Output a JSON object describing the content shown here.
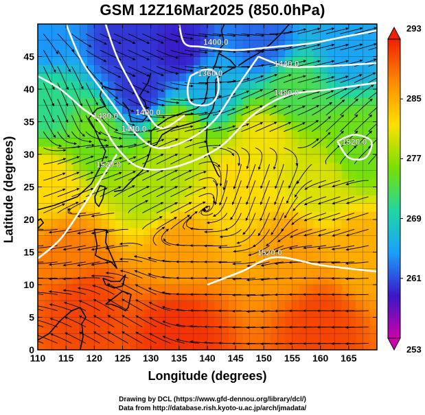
{
  "title": "GSM 12Z16Mar2025 (850.0hPa)",
  "xlabel": "Longitude (degrees)",
  "ylabel": "Latitude  (degrees)",
  "credits": {
    "line1": "Drawing by DCL (https://www.gfd-dennou.org/library/dcl/)",
    "line2": "Data from http://database.rish.kyoto-u.ac.jp/arch/jmadata/"
  },
  "map": {
    "lon_range": [
      110,
      170
    ],
    "lat_range": [
      0,
      50
    ],
    "x_ticks": [
      "110",
      "115",
      "120",
      "125",
      "130",
      "135",
      "140",
      "145",
      "150",
      "155",
      "160",
      "165"
    ],
    "y_ticks": [
      "0",
      "5",
      "10",
      "15",
      "20",
      "25",
      "30",
      "35",
      "40",
      "45"
    ],
    "colorbar": {
      "min": 253,
      "max": 293,
      "labels": [
        "293",
        "285",
        "277",
        "269",
        "261",
        "253"
      ],
      "colors": [
        "#cc00aa",
        "#3a17c8",
        "#1aa0ff",
        "#20d8a0",
        "#7ae000",
        "#ffe000",
        "#ff8a00",
        "#f02000"
      ]
    },
    "contour_labels": [
      {
        "text": "1400.0",
        "lon": 141.5,
        "lat": 46.8
      },
      {
        "text": "1440.0",
        "lon": 154.0,
        "lat": 43.5
      },
      {
        "text": "1360.0",
        "lon": 140.5,
        "lat": 42.0
      },
      {
        "text": "1400.0",
        "lon": 129.5,
        "lat": 36.0
      },
      {
        "text": "1440.0",
        "lon": 127.0,
        "lat": 33.5
      },
      {
        "text": "1480.0",
        "lon": 122.0,
        "lat": 35.5
      },
      {
        "text": "1520.0",
        "lon": 122.5,
        "lat": 28.0
      },
      {
        "text": "1480.0",
        "lon": 154.0,
        "lat": 39.0
      },
      {
        "text": "1520.0",
        "lon": 151.0,
        "lat": 14.5
      },
      {
        "text": "1520.0",
        "lon": 166.0,
        "lat": 31.5
      }
    ],
    "contours": [
      {
        "level": 1360,
        "pts": [
          [
            137,
            42
          ],
          [
            136.5,
            40
          ],
          [
            137,
            38
          ],
          [
            139,
            37.5
          ],
          [
            141,
            38
          ],
          [
            142,
            40
          ],
          [
            141.5,
            42.5
          ],
          [
            139.5,
            43
          ],
          [
            137,
            42
          ]
        ]
      },
      {
        "level": 1400,
        "pts": [
          [
            135,
            50
          ],
          [
            136,
            47
          ],
          [
            139,
            46.5
          ],
          [
            145,
            46
          ],
          [
            152,
            46.5
          ],
          [
            158,
            47
          ],
          [
            164,
            48
          ],
          [
            170,
            49
          ]
        ]
      },
      {
        "level": 1400,
        "pts": [
          [
            122,
            50
          ],
          [
            124,
            45
          ],
          [
            127,
            40
          ],
          [
            129.5,
            36
          ],
          [
            132,
            34
          ],
          [
            136,
            36
          ]
        ]
      },
      {
        "level": 1440,
        "pts": [
          [
            149,
            45
          ],
          [
            154,
            43.5
          ],
          [
            160,
            43.5
          ],
          [
            170,
            44
          ]
        ]
      },
      {
        "level": 1440,
        "pts": [
          [
            115,
            50
          ],
          [
            118,
            44
          ],
          [
            123,
            38
          ],
          [
            127,
            33.5
          ],
          [
            131,
            31
          ],
          [
            136,
            32
          ],
          [
            141,
            35
          ],
          [
            145,
            40
          ],
          [
            149,
            45
          ]
        ]
      },
      {
        "level": 1480,
        "pts": [
          [
            110,
            42
          ],
          [
            114,
            40
          ],
          [
            118,
            37
          ],
          [
            121,
            35
          ],
          [
            124,
            31
          ],
          [
            128,
            28
          ],
          [
            134,
            28
          ],
          [
            142,
            31
          ],
          [
            148,
            36
          ],
          [
            154,
            39
          ],
          [
            162,
            40
          ],
          [
            170,
            41
          ]
        ]
      },
      {
        "level": 1520,
        "pts": [
          [
            110,
            14
          ],
          [
            114,
            17
          ],
          [
            118,
            22
          ],
          [
            121,
            26
          ],
          [
            124,
            30
          ]
        ]
      },
      {
        "level": 1520,
        "pts": [
          [
            140,
            10
          ],
          [
            146,
            12
          ],
          [
            152,
            14.2
          ],
          [
            160,
            13
          ],
          [
            170,
            12
          ]
        ]
      },
      {
        "level": 1520,
        "pts": [
          [
            163,
            32
          ],
          [
            166,
            33
          ],
          [
            169,
            32
          ],
          [
            168,
            29.5
          ],
          [
            165,
            29.5
          ],
          [
            163,
            32
          ]
        ]
      }
    ],
    "coastlines": [
      {
        "name": "japan",
        "pts": [
          [
            130,
            31.2
          ],
          [
            131,
            31.5
          ],
          [
            132,
            33
          ],
          [
            134,
            34
          ],
          [
            136,
            34.5
          ],
          [
            138,
            35
          ],
          [
            140,
            35.6
          ],
          [
            141,
            37
          ],
          [
            141.5,
            39
          ],
          [
            141.5,
            41.5
          ],
          [
            143,
            42.5
          ],
          [
            145,
            43.5
          ],
          [
            144,
            44.5
          ],
          [
            142,
            45.5
          ],
          [
            141.5,
            44
          ],
          [
            141,
            43
          ],
          [
            140,
            41.5
          ],
          [
            140,
            40
          ],
          [
            139.5,
            38
          ],
          [
            138,
            37
          ],
          [
            136,
            36.5
          ],
          [
            133,
            35.5
          ],
          [
            131,
            34.3
          ],
          [
            130,
            33.5
          ],
          [
            130,
            31.2
          ]
        ]
      },
      {
        "name": "korea",
        "pts": [
          [
            125,
            38
          ],
          [
            126,
            37
          ],
          [
            126.5,
            35
          ],
          [
            128.5,
            35
          ],
          [
            129.5,
            36
          ],
          [
            129,
            38
          ],
          [
            128,
            39
          ],
          [
            129.5,
            41
          ],
          [
            130,
            42.5
          ]
        ]
      },
      {
        "name": "china",
        "pts": [
          [
            110,
            21.5
          ],
          [
            113,
            22.2
          ],
          [
            117,
            23.5
          ],
          [
            119.5,
            25.5
          ],
          [
            121,
            28
          ],
          [
            122,
            30.5
          ],
          [
            121,
            32
          ],
          [
            120,
            34
          ],
          [
            119,
            35.5
          ],
          [
            120.5,
            37
          ],
          [
            122,
            37.4
          ],
          [
            121,
            39
          ],
          [
            121.5,
            40.5
          ],
          [
            123,
            40
          ],
          [
            125,
            39.8
          ]
        ]
      },
      {
        "name": "taiwan",
        "pts": [
          [
            120.2,
            22.6
          ],
          [
            120.1,
            23.5
          ],
          [
            121,
            25.2
          ],
          [
            121.9,
            25
          ],
          [
            121.5,
            23.2
          ],
          [
            120.8,
            22
          ],
          [
            120.2,
            22.6
          ]
        ]
      },
      {
        "name": "hainan",
        "pts": [
          [
            108.7,
            19
          ],
          [
            110.5,
            20.1
          ],
          [
            111,
            19.5
          ],
          [
            109.5,
            18.2
          ],
          [
            108.7,
            19
          ]
        ]
      },
      {
        "name": "luzon",
        "pts": [
          [
            120,
            18.5
          ],
          [
            120.5,
            16
          ],
          [
            120.2,
            14.5
          ],
          [
            121.3,
            14
          ],
          [
            123,
            13.5
          ],
          [
            124,
            12.5
          ],
          [
            123,
            14.5
          ],
          [
            122,
            16.5
          ],
          [
            122.2,
            18.4
          ],
          [
            120,
            18.5
          ]
        ]
      },
      {
        "name": "visayas",
        "pts": [
          [
            121.5,
            11
          ],
          [
            123,
            10.5
          ],
          [
            124.5,
            10.5
          ],
          [
            125.5,
            11.5
          ],
          [
            125,
            9.8
          ],
          [
            123.5,
            9.5
          ],
          [
            122,
            10
          ],
          [
            121.5,
            11
          ]
        ]
      },
      {
        "name": "mindanao",
        "pts": [
          [
            122,
            7
          ],
          [
            123.5,
            8
          ],
          [
            125,
            9
          ],
          [
            126.5,
            8.5
          ],
          [
            126,
            6.5
          ],
          [
            125.5,
            6
          ],
          [
            124.5,
            6.5
          ],
          [
            123,
            7
          ],
          [
            122,
            7
          ]
        ]
      },
      {
        "name": "borneo",
        "pts": [
          [
            110,
            1.5
          ],
          [
            112,
            2.5
          ],
          [
            114,
            4.5
          ],
          [
            116,
            6
          ],
          [
            117.5,
            6.5
          ],
          [
            118.5,
            5
          ],
          [
            117.8,
            4
          ],
          [
            118,
            2
          ],
          [
            117.5,
            0
          ]
        ]
      },
      {
        "name": "sakhalin",
        "pts": [
          [
            142,
            46
          ],
          [
            143,
            47
          ],
          [
            142.5,
            49
          ],
          [
            143,
            50
          ]
        ]
      },
      {
        "name": "kuril",
        "pts": [
          [
            145.5,
            43.6
          ],
          [
            147,
            44.5
          ],
          [
            149,
            45.5
          ],
          [
            151,
            46.8
          ],
          [
            153,
            48.5
          ],
          [
            154.5,
            50
          ]
        ]
      },
      {
        "name": "ryukyu",
        "pts": [
          [
            130,
            31
          ],
          [
            129.5,
            29.5
          ],
          [
            128.5,
            27.5
          ],
          [
            127,
            26.3
          ],
          [
            125,
            24.5
          ],
          [
            123.5,
            24.3
          ]
        ]
      },
      {
        "name": "bonin",
        "pts": [
          [
            140,
            35
          ],
          [
            139.8,
            32
          ],
          [
            140.2,
            30
          ],
          [
            141.8,
            27
          ],
          [
            142.2,
            26.5
          ]
        ]
      }
    ],
    "wind_regimes": [
      {
        "lon": 125,
        "lat": 47,
        "u": 10,
        "v": -4
      },
      {
        "lon": 145,
        "lat": 48,
        "u": 12,
        "v": -1
      },
      {
        "lon": 160,
        "lat": 45,
        "u": 14,
        "v": 3
      },
      {
        "lon": 115,
        "lat": 38,
        "u": 4,
        "v": -8
      },
      {
        "lon": 150,
        "lat": 37,
        "u": 10,
        "v": 4
      },
      {
        "lon": 165,
        "lat": 34,
        "u": 6,
        "v": 5
      },
      {
        "lon": 117,
        "lat": 27,
        "u": 6,
        "v": 2
      },
      {
        "lon": 132,
        "lat": 25,
        "u": 7,
        "v": 3
      },
      {
        "lon": 150,
        "lat": 25,
        "u": -3,
        "v": -7
      },
      {
        "lon": 163,
        "lat": 22,
        "u": -7,
        "v": -2
      },
      {
        "lon": 120,
        "lat": 17,
        "u": -6,
        "v": -1
      },
      {
        "lon": 140,
        "lat": 12,
        "u": -9,
        "v": 0
      },
      {
        "lon": 160,
        "lat": 10,
        "u": -10,
        "v": 0
      },
      {
        "lon": 125,
        "lat": 5,
        "u": -6,
        "v": 3
      }
    ],
    "temp_field": [
      {
        "lon": 112,
        "lat": 48,
        "t": 264
      },
      {
        "lon": 125,
        "lat": 47,
        "t": 260
      },
      {
        "lon": 135,
        "lat": 46,
        "t": 259
      },
      {
        "lon": 150,
        "lat": 47,
        "t": 262
      },
      {
        "lon": 165,
        "lat": 47,
        "t": 265
      },
      {
        "lon": 128,
        "lat": 40,
        "t": 260
      },
      {
        "lon": 140,
        "lat": 40,
        "t": 266
      },
      {
        "lon": 155,
        "lat": 40,
        "t": 273
      },
      {
        "lon": 112,
        "lat": 38,
        "t": 271
      },
      {
        "lon": 120,
        "lat": 33,
        "t": 275
      },
      {
        "lon": 135,
        "lat": 33,
        "t": 279
      },
      {
        "lon": 150,
        "lat": 32,
        "t": 281
      },
      {
        "lon": 167,
        "lat": 31,
        "t": 275
      },
      {
        "lon": 112,
        "lat": 25,
        "t": 282
      },
      {
        "lon": 130,
        "lat": 25,
        "t": 278
      },
      {
        "lon": 145,
        "lat": 25,
        "t": 282
      },
      {
        "lon": 160,
        "lat": 25,
        "t": 280
      },
      {
        "lon": 115,
        "lat": 15,
        "t": 288
      },
      {
        "lon": 135,
        "lat": 15,
        "t": 286
      },
      {
        "lon": 155,
        "lat": 15,
        "t": 286
      },
      {
        "lon": 167,
        "lat": 15,
        "t": 285
      },
      {
        "lon": 118,
        "lat": 7,
        "t": 291
      },
      {
        "lon": 135,
        "lat": 3,
        "t": 292
      },
      {
        "lon": 160,
        "lat": 4,
        "t": 291
      }
    ]
  }
}
